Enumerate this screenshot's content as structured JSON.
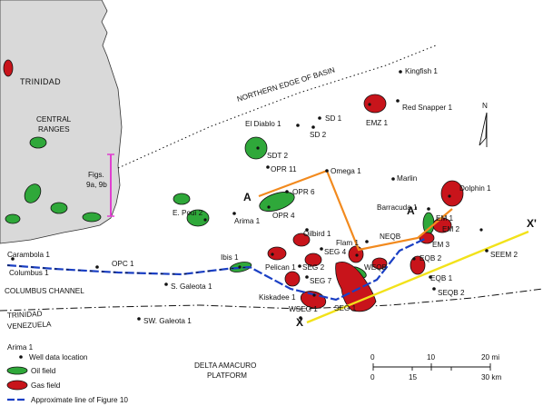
{
  "regions": {
    "trinidad": "TRINIDAD",
    "central_ranges_1": "CENTRAL",
    "central_ranges_2": "RANGES",
    "northern_edge": "NORTHERN EDGE OF BASIN",
    "columbus_channel": "COLUMBUS CHANNEL",
    "country_north": "TRINIDAD",
    "country_south": "VENEZUELA",
    "delta_1": "DELTA AMACURO",
    "delta_2": "PLATFORM",
    "figs_1": "Figs.",
    "figs_2": "9a, 9b"
  },
  "wells": {
    "kingfish": "Kingfish 1",
    "red_snapper": "Red Snapper 1",
    "emz": "EMZ 1",
    "el_diablo": "El Diablo 1",
    "sd1": "SD 1",
    "sd2": "SD 2",
    "sdt2": "SDT 2",
    "opr11": "OPR 11",
    "omega": "Omega 1",
    "marlin": "Marlin",
    "opr6": "OPR 6",
    "opr4": "OPR 4",
    "arima": "Arima 1",
    "epoui": "E. Poui 2",
    "barracuda": "Barracuda 1",
    "dolphin": "Dolphin 1",
    "em1": "EM 1",
    "em2": "EM 2",
    "em3": "EM 3",
    "oilbird": "Oilbird 1",
    "flam": "Flam 1",
    "neqb": "NEQB",
    "weqb": "WEQB",
    "eqb2": "EQB 2",
    "eqb1": "EQB 1",
    "seqb2": "SEQB 2",
    "seem2": "SEEM 2",
    "seg4": "SEG 4",
    "pelican": "Pelican 1",
    "seg2": "SEG 2",
    "seg7": "SEG 7",
    "ibis": "Ibis 1",
    "kiskadee": "Kiskadee 1",
    "seg1": "SEG 1",
    "wseg1": "WSEG 1",
    "carambola": "Carambola 1",
    "columbus": "Columbus 1",
    "opc1": "OPC 1",
    "sgaleota": "S. Galeota 1",
    "swgaleota": "SW. Galeota 1"
  },
  "sections": {
    "a": "A",
    "a_prime": "A'",
    "x": "X",
    "x_prime": "X'"
  },
  "north": "N",
  "legend": {
    "well_example": "Arima 1",
    "well_label": "Well data location",
    "oil_label": "Oil field",
    "gas_label": "Gas field",
    "line_label": "Approximate line of Figure  10"
  },
  "scale": {
    "mi_0": "0",
    "mi_10": "10",
    "mi_20": "20 mi",
    "km_0": "0",
    "km_15": "15",
    "km_30": "30 km"
  },
  "colors": {
    "oil": "#2fa83a",
    "gas": "#c8141b",
    "section_a": "#f28a1e",
    "section_x": "#f2e21a",
    "figure_line": "#1a3fc4",
    "figs_line": "#e040d0",
    "land": "#d9d9d9"
  }
}
